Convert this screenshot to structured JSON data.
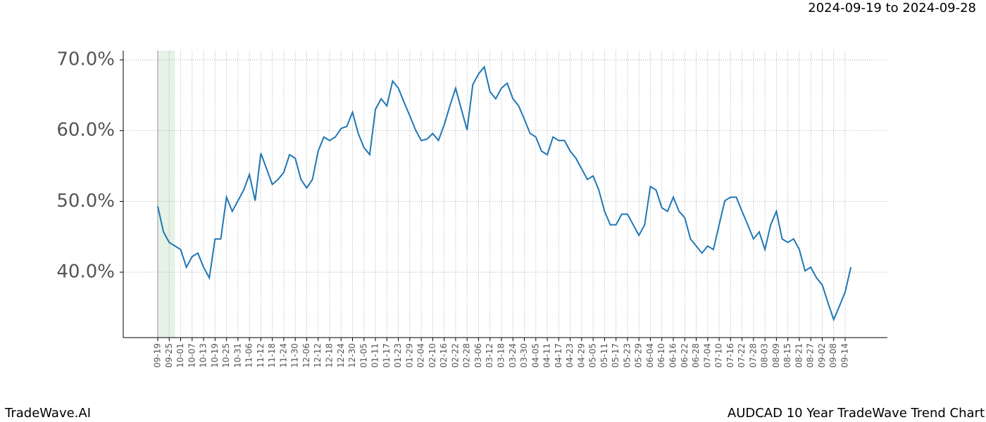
{
  "chart_data": {
    "type": "line",
    "subtitle": "2024-09-19 to 2024-09-28",
    "title": "AUDCAD 10 Year TradeWave Trend Chart",
    "brand": "TradeWave.AI",
    "categories": [
      "09-19",
      null,
      "09-25",
      null,
      "10-01",
      null,
      "10-07",
      null,
      "10-13",
      null,
      "10-19",
      null,
      "10-25",
      null,
      "10-31",
      null,
      "11-06",
      null,
      "11-12",
      null,
      "11-18",
      null,
      "11-24",
      null,
      "11-30",
      null,
      "12-06",
      null,
      "12-12",
      null,
      "12-18",
      null,
      "12-24",
      null,
      "12-30",
      null,
      "01-05",
      null,
      "01-11",
      null,
      "01-17",
      null,
      "01-23",
      null,
      "01-29",
      null,
      "02-04",
      null,
      "02-10",
      null,
      "02-16",
      null,
      "02-22",
      null,
      "02-28",
      null,
      "03-06",
      null,
      "03-12",
      null,
      "03-18",
      null,
      "03-24",
      null,
      "03-30",
      null,
      "04-05",
      null,
      "04-11",
      null,
      "04-17",
      null,
      "04-23",
      null,
      "04-29",
      null,
      "05-05",
      null,
      "05-11",
      null,
      "05-17",
      null,
      "05-23",
      null,
      "05-29",
      null,
      "06-04",
      null,
      "06-10",
      null,
      "06-16",
      null,
      "06-22",
      null,
      "06-28",
      null,
      "07-04",
      null,
      "07-10",
      null,
      "07-16",
      null,
      "07-22",
      null,
      "07-28",
      null,
      "08-03",
      null,
      "08-09",
      null,
      "08-15",
      null,
      "08-21",
      null,
      "08-27",
      null,
      "09-02",
      null,
      "09-08",
      null,
      "09-14",
      null
    ],
    "series": [
      {
        "name": "AUDCAD",
        "color": "#1f77b4",
        "values": [
          49.3,
          45.7,
          44.2,
          43.7,
          43.2,
          40.7,
          42.2,
          42.7,
          40.7,
          39.2,
          44.7,
          44.7,
          50.6,
          48.6,
          50.1,
          51.6,
          53.8,
          50.1,
          56.8,
          54.6,
          52.4,
          53.1,
          54.1,
          56.6,
          56.1,
          53.1,
          51.9,
          53.1,
          57.1,
          59.1,
          58.6,
          59.1,
          60.3,
          60.6,
          62.6,
          59.6,
          57.6,
          56.6,
          63.0,
          64.5,
          63.5,
          67.0,
          66.0,
          64.0,
          62.1,
          60.1,
          58.6,
          58.8,
          59.6,
          58.6,
          60.8,
          63.5,
          66.0,
          63.0,
          60.1,
          66.5,
          68.0,
          69.0,
          65.5,
          64.5,
          66.0,
          66.7,
          64.5,
          63.5,
          61.6,
          59.6,
          59.1,
          57.1,
          56.6,
          59.1,
          58.6,
          58.6,
          57.1,
          56.1,
          54.6,
          53.1,
          53.6,
          51.6,
          48.6,
          46.7,
          46.7,
          48.2,
          48.2,
          46.7,
          45.2,
          46.7,
          52.1,
          51.6,
          49.1,
          48.6,
          50.6,
          48.6,
          47.7,
          44.7,
          43.7,
          42.7,
          43.7,
          43.2,
          46.7,
          50.1,
          50.6,
          50.6,
          48.6,
          46.7,
          44.7,
          45.7,
          43.2,
          46.7,
          48.6,
          44.7,
          44.2,
          44.7,
          43.2,
          40.2,
          40.7,
          39.2,
          38.2,
          35.7,
          33.3,
          35.2,
          37.2,
          40.7
        ]
      }
    ],
    "ylim": [
      30.76,
      71.3
    ],
    "yticks": [
      {
        "value": 40,
        "label": "40.0%"
      },
      {
        "value": 50,
        "label": "50.0%"
      },
      {
        "value": 60,
        "label": "60.0%"
      },
      {
        "value": 70,
        "label": "70.0%"
      }
    ],
    "grid": true,
    "highlight": [
      0,
      3
    ],
    "highlight_color": "#e5f2e5"
  }
}
